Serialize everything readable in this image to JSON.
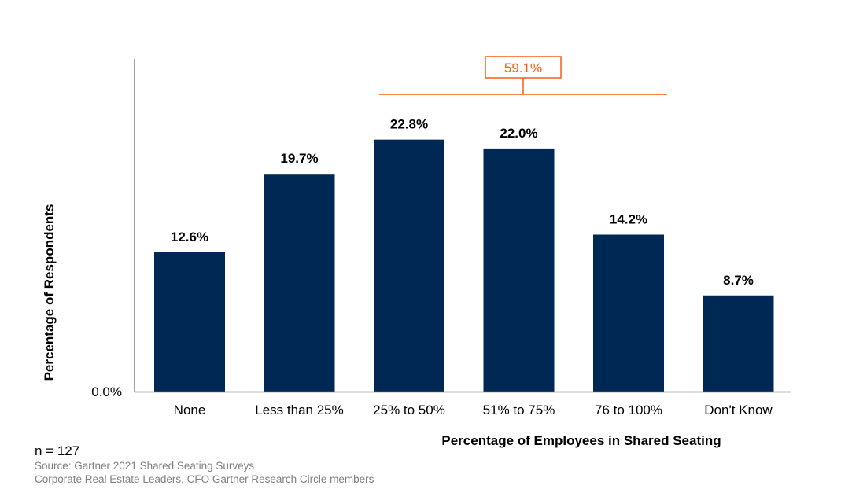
{
  "chart_data": {
    "type": "bar",
    "categories": [
      "None",
      "Less than 25%",
      "25% to 50%",
      "51% to 75%",
      "76 to 100%",
      "Don't Know"
    ],
    "values": [
      12.6,
      19.7,
      22.8,
      22.0,
      14.2,
      8.7
    ],
    "value_labels": [
      "12.6%",
      "19.7%",
      "22.8%",
      "22.0%",
      "14.2%",
      "8.7%"
    ],
    "xlabel": "Percentage of Employees in Shared Seating",
    "ylabel": "Percentage of Respondents",
    "y_tick_labels": [
      "0.0%"
    ],
    "ylim": [
      0,
      30
    ],
    "grid": false,
    "bar_color": "#002855",
    "annotation": {
      "text": "59.1%",
      "spans_categories": [
        "25% to 50%",
        "51% to 75%",
        "76 to 100%"
      ],
      "color": "#FF5A0F"
    }
  },
  "footer": {
    "n": "n = 127",
    "source": "Source: Gartner 2021 Shared Seating Surveys",
    "note": "Corporate Real Estate Leaders, CFO Gartner Research Circle members"
  }
}
